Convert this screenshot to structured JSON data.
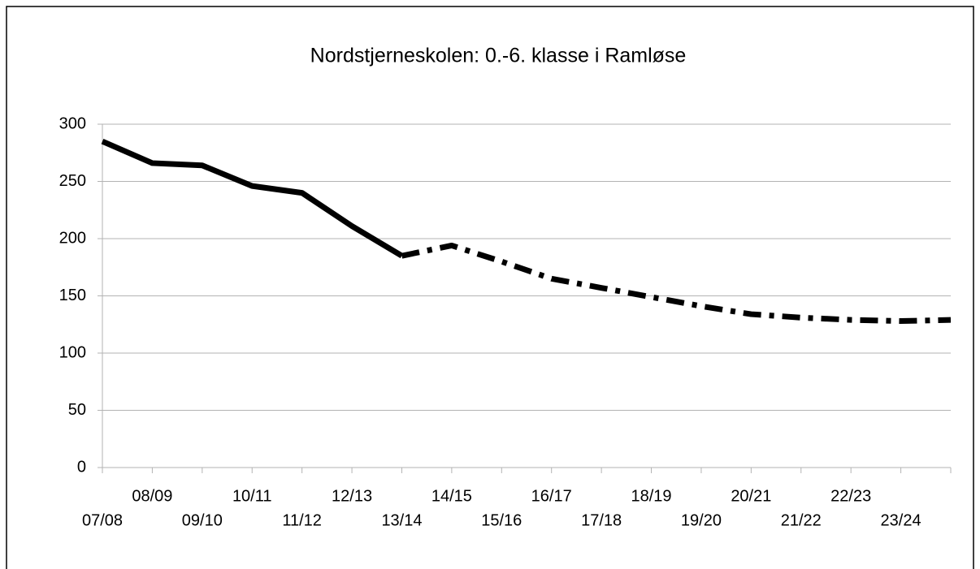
{
  "chart_data": {
    "type": "line",
    "title": "Nordstjerneskolen: 0.-6. klasse i Ramløse",
    "categories": [
      "07/08",
      "08/09",
      "09/10",
      "10/11",
      "11/12",
      "12/13",
      "13/14",
      "14/15",
      "15/16",
      "16/17",
      "17/18",
      "18/19",
      "19/20",
      "20/21",
      "21/22",
      "22/23",
      "23/24",
      null
    ],
    "series": [
      {
        "color": "#000000",
        "dash": "solid",
        "values": [
          285,
          266,
          264,
          246,
          240,
          211,
          185,
          null,
          null,
          null,
          null,
          null,
          null,
          null,
          null,
          null,
          null,
          null
        ]
      },
      {
        "color": "#000000",
        "dash": "dash-dot",
        "values": [
          null,
          null,
          null,
          null,
          null,
          null,
          185,
          194,
          180,
          165,
          157,
          149,
          141,
          134,
          131,
          129,
          128,
          129
        ]
      }
    ],
    "ylim": [
      0,
      300
    ],
    "yticks": [
      0,
      50,
      100,
      150,
      200,
      250,
      300
    ],
    "grid": true
  }
}
